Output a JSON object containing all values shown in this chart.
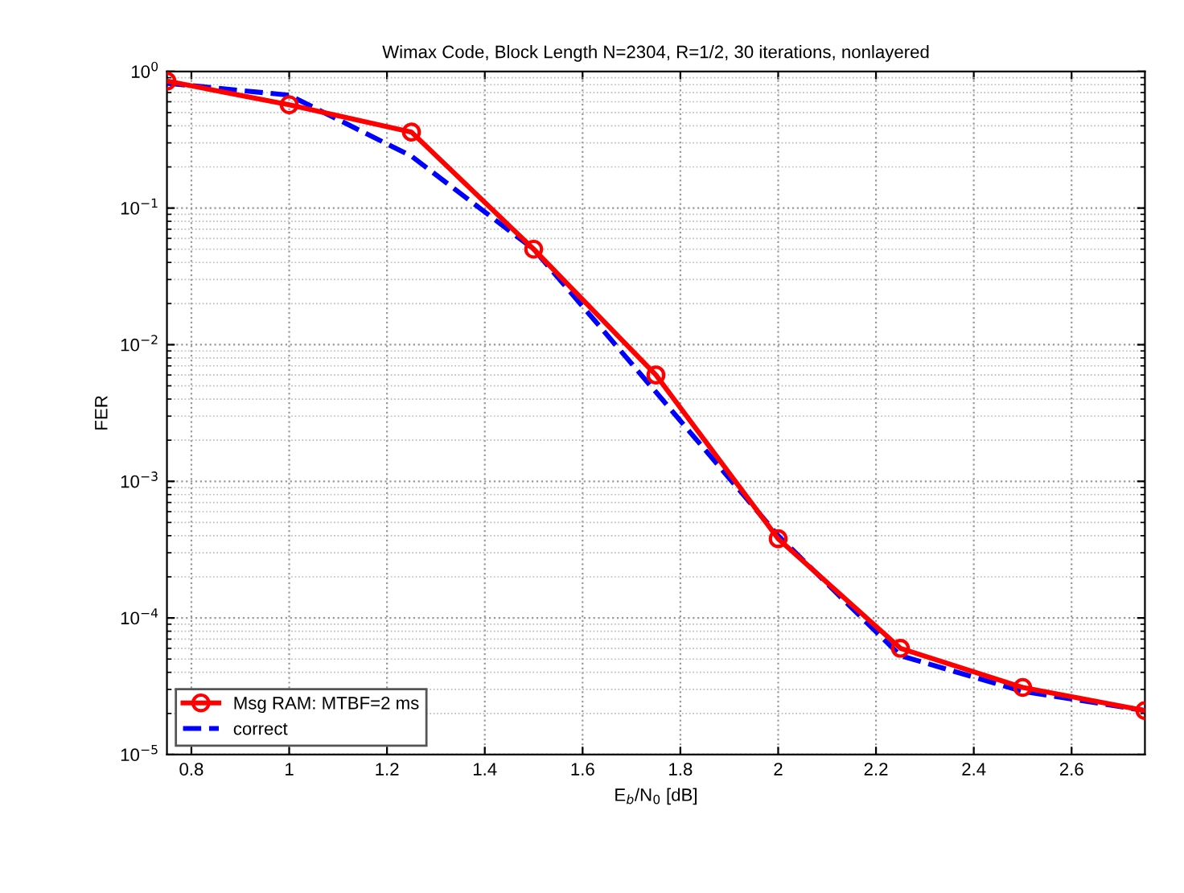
{
  "chart_data": {
    "type": "line",
    "title": "Wimax Code, Block Length N=2304, R=1/2, 30 iterations, nonlayered",
    "xlabel": "E$_{b}$/N$_{0}$ [dB]",
    "ylabel": "FER",
    "x": [
      0.75,
      1,
      1.25,
      1.5,
      1.75,
      2,
      2.25,
      2.5,
      2.75
    ],
    "series": [
      {
        "name": "Msg RAM: MTBF=2 ms",
        "color": "#ff0000",
        "marker": "circle",
        "line_style": "solid",
        "values": [
          0.85,
          0.57,
          0.36,
          0.05,
          0.006,
          0.00038,
          6e-05,
          3.1e-05,
          2.1e-05
        ]
      },
      {
        "name": "correct",
        "color": "#0000ff",
        "marker": "none",
        "line_style": "dashed",
        "values": [
          0.82,
          0.67,
          0.24,
          0.05,
          0.0045,
          0.0004,
          5.3e-05,
          2.9e-05,
          2.1e-05
        ]
      }
    ],
    "log": "y",
    "xlim": [
      0.75,
      2.75
    ],
    "ylim": [
      1e-05,
      1
    ],
    "xticks": [
      0.8,
      1,
      1.2,
      1.4,
      1.6,
      1.8,
      2,
      2.2,
      2.4,
      2.6
    ],
    "yticks": [
      {
        "value": 1e-05,
        "label": "10$^{−5}$"
      },
      {
        "value": 0.0001,
        "label": "10$^{−4}$"
      },
      {
        "value": 0.001,
        "label": "10$^{−3}$"
      },
      {
        "value": 0.01,
        "label": "10$^{−2}$"
      },
      {
        "value": 0.1,
        "label": "10$^{−1}$"
      },
      {
        "value": 1,
        "label": "10$^{0}$"
      }
    ],
    "grid": true,
    "legend": "bottom left"
  }
}
